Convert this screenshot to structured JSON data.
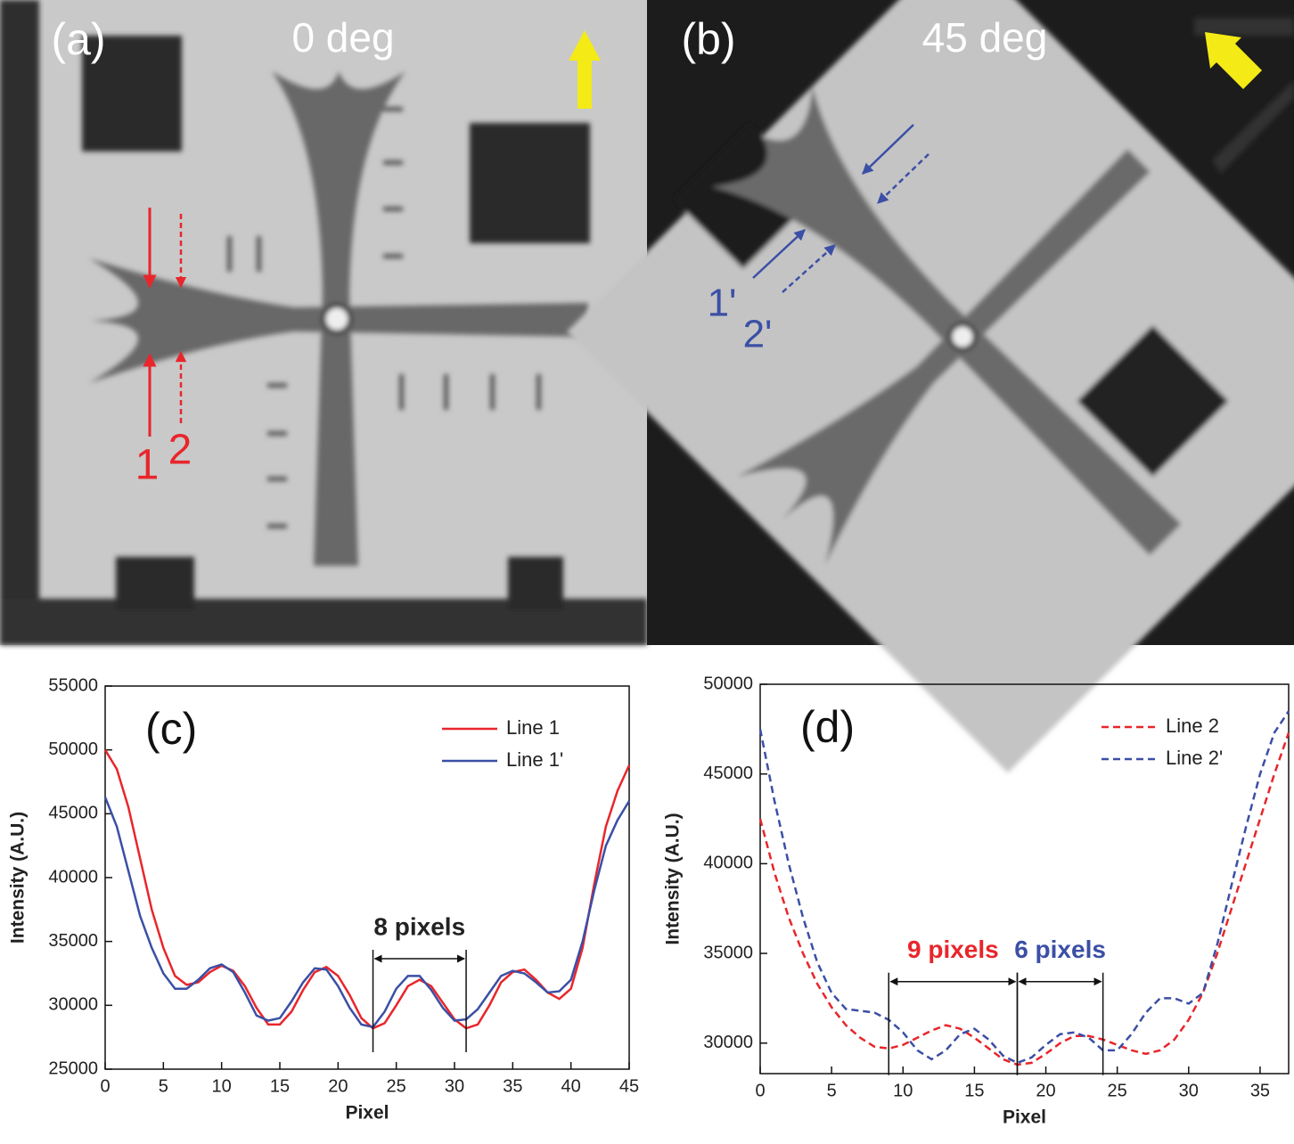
{
  "photos": [
    {
      "label": "(a)",
      "angle": "0 deg",
      "markers": [
        "1",
        "2"
      ]
    },
    {
      "label": "(b)",
      "angle": "45 deg",
      "markers": [
        "1'",
        "2'"
      ]
    }
  ],
  "chart_data": [
    {
      "type": "line",
      "panel": "(c)",
      "xlabel": "Pixel",
      "ylabel": "Intensity (A.U.)",
      "xlim": [
        0,
        45
      ],
      "xticks": [
        0,
        5,
        10,
        15,
        20,
        25,
        30,
        35,
        40,
        45
      ],
      "ylim": [
        25000,
        55000
      ],
      "yticks": [
        25000,
        30000,
        35000,
        40000,
        45000,
        50000,
        55000
      ],
      "legend": "upper right",
      "x": [
        0,
        1,
        2,
        3,
        4,
        5,
        6,
        7,
        8,
        9,
        10,
        11,
        12,
        13,
        14,
        15,
        16,
        17,
        18,
        19,
        20,
        21,
        22,
        23,
        24,
        25,
        26,
        27,
        28,
        29,
        30,
        31,
        32,
        33,
        34,
        35,
        36,
        37,
        38,
        39,
        40,
        41,
        42,
        43,
        44,
        45
      ],
      "series": [
        {
          "name": "Line 1",
          "color": "#e8262b",
          "dashed": false,
          "values": [
            50000,
            48500,
            45500,
            41500,
            37500,
            34500,
            32300,
            31600,
            31800,
            32600,
            33100,
            32700,
            31500,
            29800,
            28500,
            28500,
            29500,
            31200,
            32600,
            33000,
            32300,
            30800,
            29000,
            28200,
            28600,
            30000,
            31500,
            32000,
            31500,
            30200,
            28900,
            28200,
            28500,
            30000,
            31800,
            32600,
            32800,
            32000,
            31000,
            30500,
            31300,
            34500,
            39500,
            44000,
            46800,
            48800
          ]
        },
        {
          "name": "Line 1'",
          "color": "#3b4fa5",
          "dashed": false,
          "values": [
            46300,
            44000,
            40500,
            37000,
            34500,
            32500,
            31300,
            31300,
            32000,
            32900,
            33200,
            32600,
            31000,
            29200,
            28800,
            29000,
            30300,
            31800,
            32900,
            32800,
            31500,
            29800,
            28500,
            28300,
            29500,
            31300,
            32300,
            32300,
            31200,
            29800,
            28800,
            28900,
            29700,
            31000,
            32300,
            32700,
            32500,
            31800,
            31000,
            31100,
            32000,
            35000,
            39000,
            42500,
            44500,
            46000
          ]
        }
      ],
      "annotations": [
        {
          "text": "8 pixels",
          "color": "#222222",
          "x": [
            23,
            31
          ],
          "y": 33650
        }
      ]
    },
    {
      "type": "line",
      "panel": "(d)",
      "xlabel": "Pixel",
      "ylabel": "Intensity (A.U.)",
      "xlim": [
        0,
        37
      ],
      "xticks": [
        0,
        5,
        10,
        15,
        20,
        25,
        30,
        35
      ],
      "ylim": [
        28300,
        50000
      ],
      "yticks": [
        30000,
        35000,
        40000,
        45000,
        50000
      ],
      "legend": "upper right",
      "x": [
        0,
        1,
        2,
        3,
        4,
        5,
        6,
        7,
        8,
        9,
        10,
        11,
        12,
        13,
        14,
        15,
        16,
        17,
        18,
        19,
        20,
        21,
        22,
        23,
        24,
        25,
        26,
        27,
        28,
        29,
        30,
        31,
        32,
        33,
        34,
        35,
        36,
        37
      ],
      "series": [
        {
          "name": "Line 2",
          "color": "#e8262b",
          "dashed": true,
          "values": [
            42500,
            39500,
            37000,
            35000,
            33300,
            32000,
            31000,
            30300,
            29800,
            29700,
            29900,
            30300,
            30700,
            31000,
            30800,
            30300,
            29700,
            29100,
            28800,
            28900,
            29400,
            30000,
            30400,
            30400,
            30200,
            29900,
            29600,
            29400,
            29600,
            30200,
            31300,
            32800,
            35000,
            37500,
            40000,
            42500,
            45000,
            47300
          ]
        },
        {
          "name": "Line 2'",
          "color": "#3b4fa5",
          "dashed": true,
          "values": [
            47500,
            43500,
            40000,
            37000,
            34500,
            32800,
            31900,
            31800,
            31700,
            31300,
            30600,
            29600,
            29100,
            29600,
            30500,
            30800,
            30200,
            29300,
            28900,
            29200,
            29900,
            30500,
            30600,
            30300,
            29600,
            29600,
            30500,
            31700,
            32500,
            32500,
            32200,
            32800,
            35500,
            38800,
            42000,
            45000,
            47300,
            48500
          ]
        }
      ],
      "annotations": [
        {
          "text": "9 pixels",
          "color": "#e8262b",
          "x": [
            9,
            18
          ],
          "y": 33430
        },
        {
          "text": "6 pixels",
          "color": "#3b4fa5",
          "x": [
            18,
            24
          ],
          "y": 33430
        }
      ]
    }
  ]
}
